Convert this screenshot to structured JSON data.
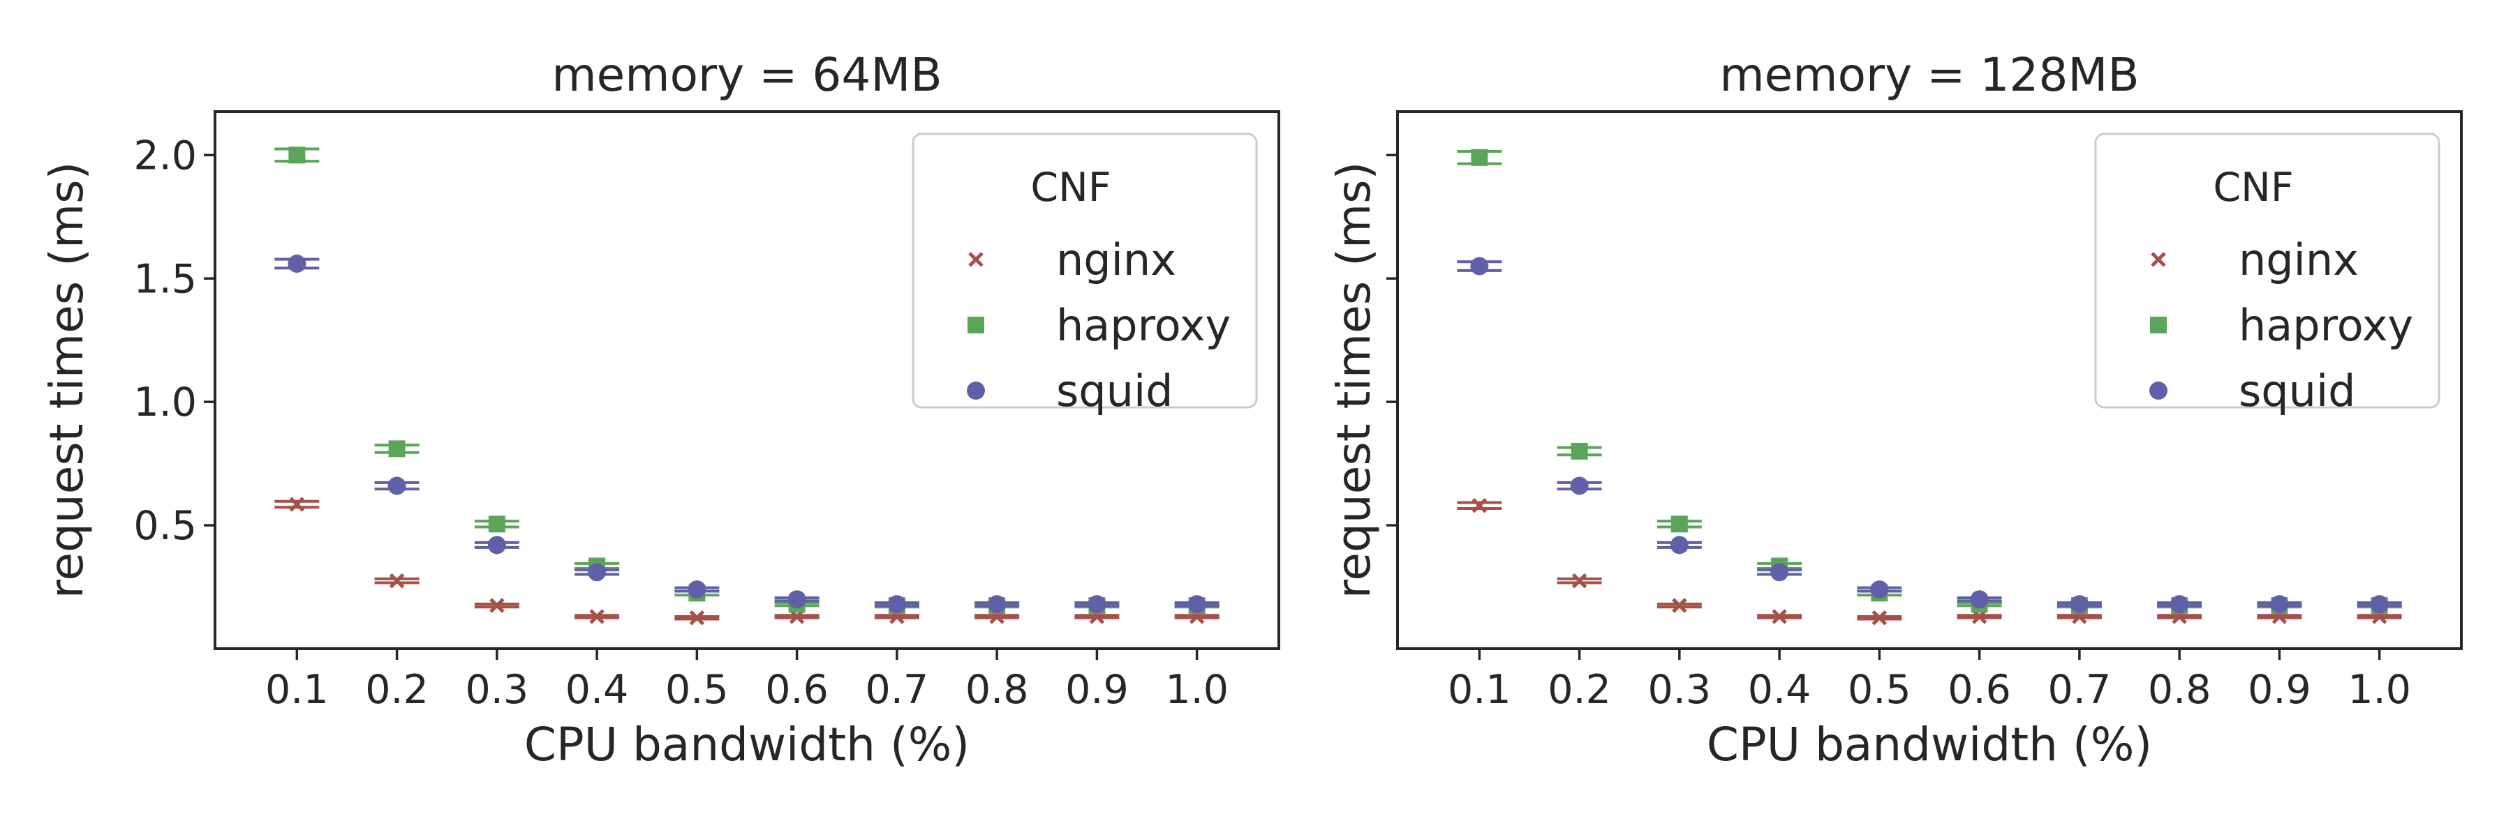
{
  "chart_data": [
    {
      "type": "scatter",
      "title": "memory = 64MB",
      "xlabel": "CPU bandwidth (%)",
      "ylabel": "request times (ms)",
      "categories": [
        "0.1",
        "0.2",
        "0.3",
        "0.4",
        "0.5",
        "0.6",
        "0.7",
        "0.8",
        "0.9",
        "1.0"
      ],
      "y_ticks": [
        "0.5",
        "1.0",
        "1.5",
        "2.0"
      ],
      "ylim": [
        0.0,
        2.1
      ],
      "show_y_tick_labels": true,
      "grid": false,
      "legend": {
        "title": "CNF",
        "position": "top-right"
      },
      "series": [
        {
          "name": "nginx",
          "marker": "x",
          "color": "#a5514a",
          "values": [
            0.585,
            0.275,
            0.175,
            0.13,
            0.125,
            0.13,
            0.13,
            0.13,
            0.13,
            0.13
          ],
          "error": [
            0.012,
            0.008,
            0.006,
            0.005,
            0.005,
            0.005,
            0.005,
            0.005,
            0.005,
            0.005
          ]
        },
        {
          "name": "haproxy",
          "marker": "square",
          "color": "#5ba55b",
          "values": [
            2.0,
            0.81,
            0.505,
            0.335,
            0.225,
            0.18,
            0.175,
            0.175,
            0.175,
            0.175
          ],
          "error": [
            0.025,
            0.015,
            0.012,
            0.01,
            0.008,
            0.006,
            0.006,
            0.006,
            0.006,
            0.006
          ]
        },
        {
          "name": "squid",
          "marker": "circle",
          "color": "#6060a8",
          "values": [
            1.56,
            0.66,
            0.42,
            0.31,
            0.24,
            0.2,
            0.18,
            0.18,
            0.18,
            0.18
          ],
          "error": [
            0.018,
            0.013,
            0.01,
            0.009,
            0.007,
            0.006,
            0.006,
            0.006,
            0.006,
            0.006
          ]
        }
      ]
    },
    {
      "type": "scatter",
      "title": "memory = 128MB",
      "xlabel": "CPU bandwidth (%)",
      "ylabel": "request times (ms)",
      "categories": [
        "0.1",
        "0.2",
        "0.3",
        "0.4",
        "0.5",
        "0.6",
        "0.7",
        "0.8",
        "0.9",
        "1.0"
      ],
      "y_ticks": [
        "0.5",
        "1.0",
        "1.5",
        "2.0"
      ],
      "ylim": [
        0.0,
        2.1
      ],
      "show_y_tick_labels": false,
      "grid": false,
      "legend": {
        "title": "CNF",
        "position": "top-right"
      },
      "series": [
        {
          "name": "nginx",
          "marker": "x",
          "color": "#a5514a",
          "values": [
            0.58,
            0.275,
            0.175,
            0.13,
            0.125,
            0.13,
            0.13,
            0.13,
            0.13,
            0.13
          ],
          "error": [
            0.012,
            0.008,
            0.006,
            0.005,
            0.005,
            0.005,
            0.005,
            0.005,
            0.005,
            0.005
          ]
        },
        {
          "name": "haproxy",
          "marker": "square",
          "color": "#5ba55b",
          "values": [
            1.99,
            0.8,
            0.505,
            0.335,
            0.225,
            0.18,
            0.175,
            0.175,
            0.175,
            0.175
          ],
          "error": [
            0.025,
            0.015,
            0.012,
            0.01,
            0.008,
            0.006,
            0.006,
            0.006,
            0.006,
            0.006
          ]
        },
        {
          "name": "squid",
          "marker": "circle",
          "color": "#6060a8",
          "values": [
            1.55,
            0.66,
            0.42,
            0.31,
            0.24,
            0.2,
            0.18,
            0.18,
            0.18,
            0.18
          ],
          "error": [
            0.018,
            0.013,
            0.01,
            0.009,
            0.007,
            0.006,
            0.006,
            0.006,
            0.006,
            0.006
          ]
        }
      ]
    }
  ]
}
